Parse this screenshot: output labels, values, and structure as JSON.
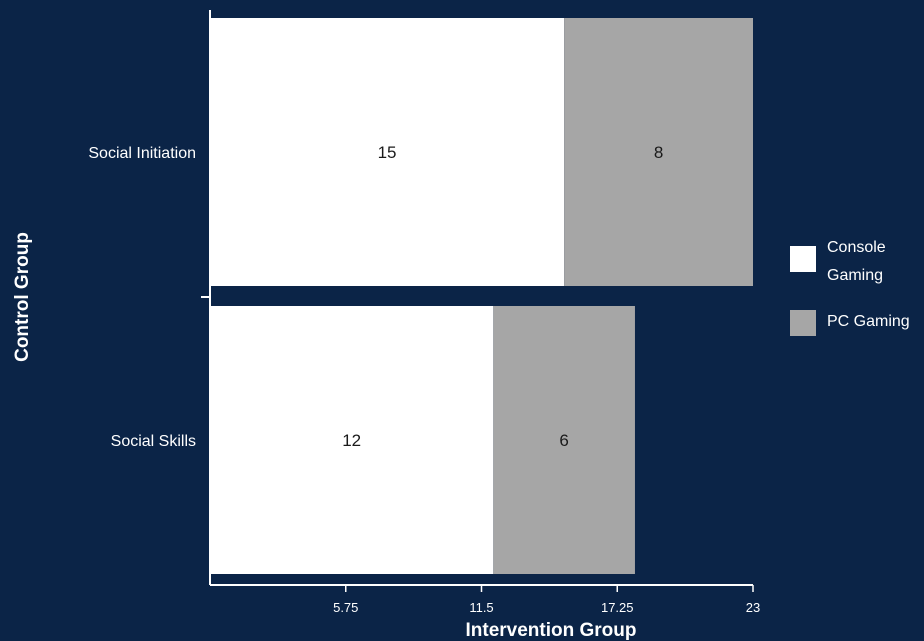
{
  "chart_data": {
    "type": "bar",
    "orientation": "horizontal",
    "stacked": true,
    "categories": [
      "Social Initiation",
      "Social Skills"
    ],
    "series": [
      {
        "name": "Console Gaming",
        "values": [
          15,
          12
        ],
        "color": "#ffffff"
      },
      {
        "name": "PC Gaming",
        "values": [
          8,
          6
        ],
        "color": "#a6a6a6"
      }
    ],
    "xlabel": "Intervention Group",
    "ylabel": "Control Group",
    "xlim": [
      0,
      23
    ],
    "xticks": [
      5.75,
      11.5,
      17.25,
      23
    ],
    "xtick_labels": [
      "5.75",
      "11.5",
      "17.25",
      "23"
    ],
    "grid": false,
    "legend_position": "right"
  }
}
